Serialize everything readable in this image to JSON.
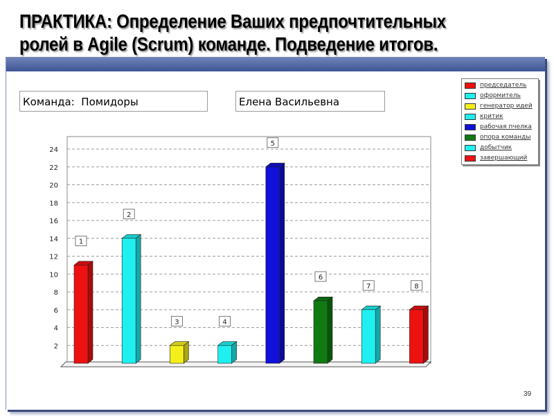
{
  "slide": {
    "title_line1": "ПРАКТИКА: Определение Ваших предпочтительных",
    "title_line2": "ролей в Agile (Scrum) команде. Подведение итогов.",
    "team_field": "Команда:  Помидоры",
    "name_field": "Елена Васильевна",
    "page_number": "39"
  },
  "legend": {
    "items": [
      {
        "label": "председатель",
        "color": "#ee1111"
      },
      {
        "label": "оформитель",
        "color": "#1fefef"
      },
      {
        "label": "генератор идей",
        "color": "#f4ef1a"
      },
      {
        "label": "критик",
        "color": "#1fefef"
      },
      {
        "label": "рабочая пчелка",
        "color": "#1010d8"
      },
      {
        "label": "опора команды",
        "color": "#0f7a12"
      },
      {
        "label": "добытчик",
        "color": "#1fefef"
      },
      {
        "label": "завершающий",
        "color": "#ee1111"
      }
    ]
  },
  "chart_data": {
    "type": "bar",
    "categories": [
      "1",
      "2",
      "3",
      "4",
      "5",
      "6",
      "7",
      "8"
    ],
    "values": [
      11,
      14,
      2,
      2,
      22,
      7,
      6,
      6
    ],
    "colors": [
      "#ee1111",
      "#1fefef",
      "#f4ef1a",
      "#1fefef",
      "#1010d8",
      "#0f7a12",
      "#1fefef",
      "#ee1111"
    ],
    "ylim": [
      0,
      24
    ],
    "yticks": [
      2,
      4,
      6,
      8,
      10,
      12,
      14,
      16,
      18,
      20,
      22,
      24
    ],
    "grid": true,
    "legend_position": "top-right",
    "bar_style": "3d"
  }
}
